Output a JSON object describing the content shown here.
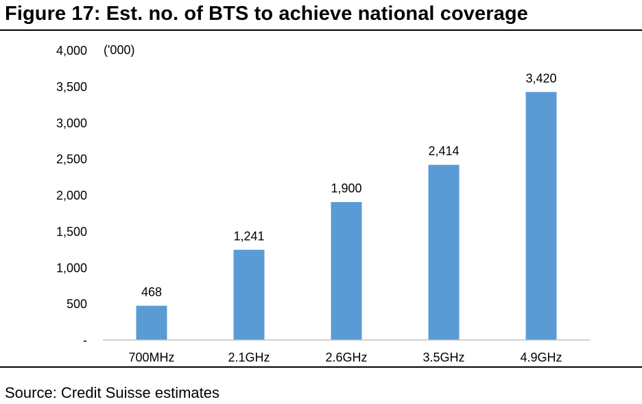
{
  "figure": {
    "title": "Figure 17: Est. no. of BTS to achieve national coverage",
    "source": "Source: Credit Suisse estimates"
  },
  "chart_data": {
    "type": "bar",
    "title": "Figure 17: Est. no. of BTS to achieve national coverage",
    "xlabel": "",
    "ylabel": "('000)",
    "unit_label": "('000)",
    "categories": [
      "700MHz",
      "2.1GHz",
      "2.6GHz",
      "3.5GHz",
      "4.9GHz"
    ],
    "values": [
      468,
      1241,
      1900,
      2414,
      3420
    ],
    "data_labels": [
      "468",
      "1,241",
      "1,900",
      "2,414",
      "3,420"
    ],
    "ylim": [
      0,
      4000
    ],
    "y_ticks": [
      0,
      500,
      1000,
      1500,
      2000,
      2500,
      3000,
      3500,
      4000
    ],
    "y_tick_labels": [
      "-",
      "500",
      "1,000",
      "1,500",
      "2,000",
      "2,500",
      "3,000",
      "3,500",
      "4,000"
    ],
    "bar_color": "#5B9BD5",
    "axis_color": "#BFBFBF",
    "grid": false,
    "legend": "none"
  }
}
